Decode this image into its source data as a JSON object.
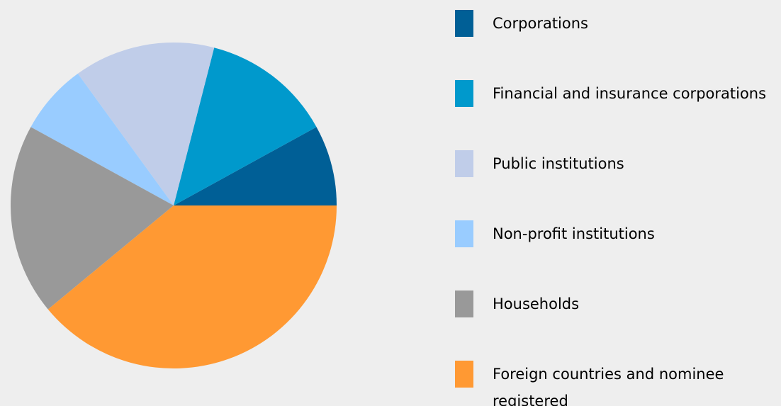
{
  "chart_data": {
    "type": "pie",
    "categories": [
      "Corporations",
      "Financial and insurance corporations",
      "Public institutions",
      "Non-profit institutions",
      "Households",
      "Foreign countries and nominee registered"
    ],
    "values": [
      8,
      13,
      14,
      7,
      19,
      39
    ],
    "colors": [
      "#005f96",
      "#0099cc",
      "#c0cde9",
      "#99ccff",
      "#999999",
      "#ff9933"
    ]
  }
}
